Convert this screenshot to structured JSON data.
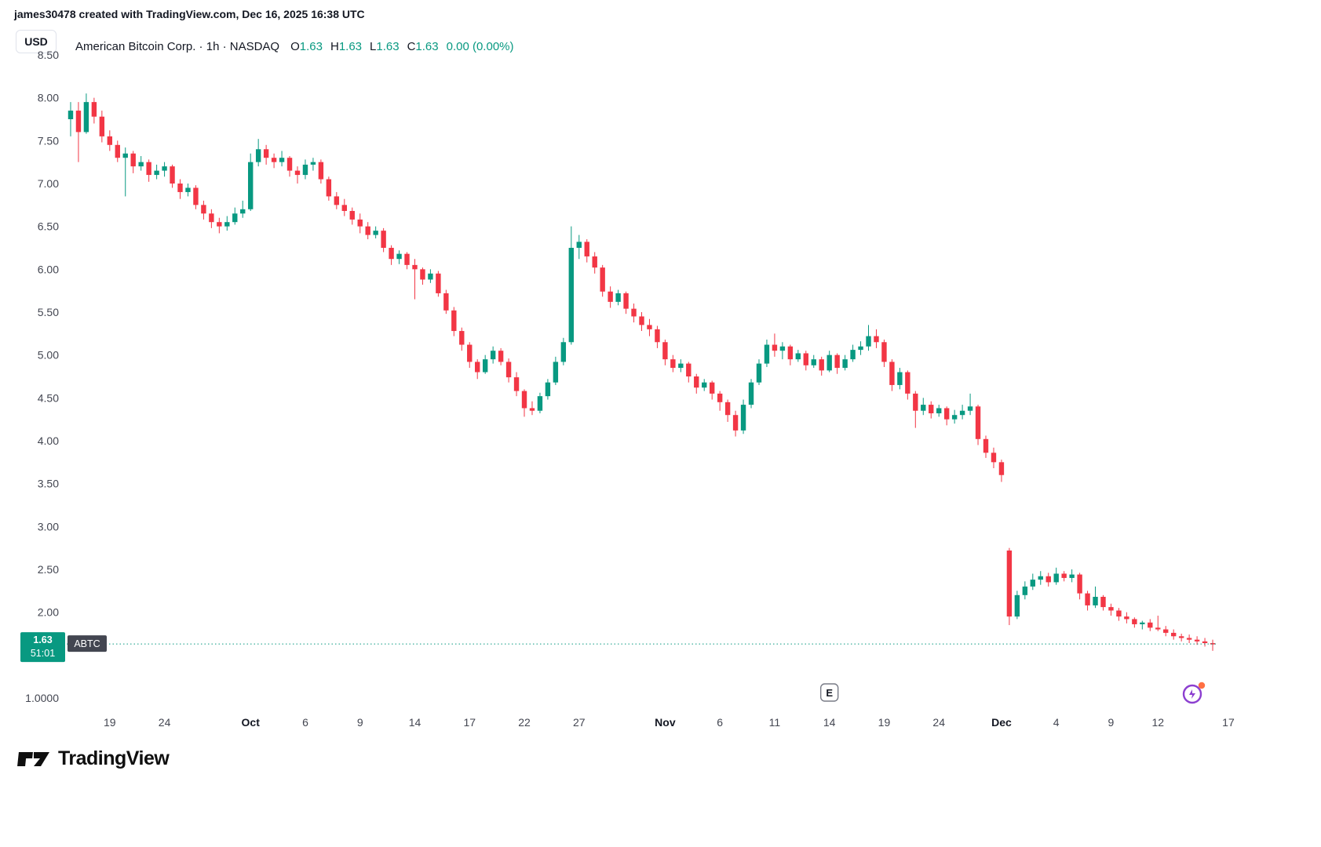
{
  "attribution": "james30478 created with TradingView.com, Dec 16, 2025 16:38 UTC",
  "toolbar": {
    "currency_button": "USD"
  },
  "legend": {
    "title": "American Bitcoin Corp. · 1h · NASDAQ",
    "o_label": "O",
    "o_value": "1.63",
    "h_label": "H",
    "h_value": "1.63",
    "l_label": "L",
    "l_value": "1.63",
    "c_label": "C",
    "c_value": "1.63",
    "change": "0.00 (0.00%)"
  },
  "price_label": {
    "price": "1.63",
    "countdown": "51:01",
    "symbol": "ABTC"
  },
  "footer": {
    "logo_text": "TradingView"
  },
  "colors": {
    "up": "#089981",
    "down": "#f23645",
    "symbol_badge": "#434651",
    "axis_text": "#434651"
  },
  "chart_data": {
    "type": "candlestick",
    "title": "American Bitcoin Corp.",
    "symbol": "ABTC",
    "exchange": "NASDAQ",
    "interval": "1h",
    "currency": "USD",
    "last_price": 1.63,
    "ylim": [
      1.0,
      8.5
    ],
    "grid": false,
    "y_ticks": [
      {
        "label": "8.50",
        "price": 8.5
      },
      {
        "label": "8.00",
        "price": 8.0
      },
      {
        "label": "7.50",
        "price": 7.5
      },
      {
        "label": "7.00",
        "price": 7.0
      },
      {
        "label": "6.50",
        "price": 6.5
      },
      {
        "label": "6.00",
        "price": 6.0
      },
      {
        "label": "5.50",
        "price": 5.5
      },
      {
        "label": "5.00",
        "price": 5.0
      },
      {
        "label": "4.50",
        "price": 4.5
      },
      {
        "label": "4.00",
        "price": 4.0
      },
      {
        "label": "3.50",
        "price": 3.5
      },
      {
        "label": "3.00",
        "price": 3.0
      },
      {
        "label": "2.50",
        "price": 2.5
      },
      {
        "label": "2.00",
        "price": 2.0
      },
      {
        "label": "1.0000",
        "price": 1.0
      }
    ],
    "x_ticks": [
      {
        "label": "19",
        "i": 6
      },
      {
        "label": "24",
        "i": 13
      },
      {
        "label": "Oct",
        "i": 24,
        "bold": true
      },
      {
        "label": "6",
        "i": 31
      },
      {
        "label": "9",
        "i": 38
      },
      {
        "label": "14",
        "i": 45
      },
      {
        "label": "17",
        "i": 52
      },
      {
        "label": "22",
        "i": 59
      },
      {
        "label": "27",
        "i": 66
      },
      {
        "label": "Nov",
        "i": 77,
        "bold": true
      },
      {
        "label": "6",
        "i": 84
      },
      {
        "label": "11",
        "i": 91
      },
      {
        "label": "14",
        "i": 98
      },
      {
        "label": "19",
        "i": 105
      },
      {
        "label": "24",
        "i": 112
      },
      {
        "label": "Dec",
        "i": 120,
        "bold": true
      },
      {
        "label": "4",
        "i": 127
      },
      {
        "label": "9",
        "i": 134
      },
      {
        "label": "12",
        "i": 140
      },
      {
        "label": "17",
        "i": 149
      }
    ],
    "markers": [
      {
        "label": "E",
        "i": 98,
        "type": "earnings"
      }
    ],
    "candles": [
      [
        7.75,
        7.95,
        7.55,
        7.85
      ],
      [
        7.85,
        7.95,
        7.25,
        7.6
      ],
      [
        7.6,
        8.05,
        7.58,
        7.95
      ],
      [
        7.95,
        8.0,
        7.7,
        7.78
      ],
      [
        7.78,
        7.85,
        7.48,
        7.55
      ],
      [
        7.55,
        7.62,
        7.38,
        7.45
      ],
      [
        7.45,
        7.5,
        7.25,
        7.3
      ],
      [
        7.3,
        7.42,
        6.85,
        7.35
      ],
      [
        7.35,
        7.38,
        7.12,
        7.2
      ],
      [
        7.2,
        7.32,
        7.15,
        7.25
      ],
      [
        7.25,
        7.28,
        7.02,
        7.1
      ],
      [
        7.1,
        7.22,
        7.05,
        7.15
      ],
      [
        7.15,
        7.25,
        7.08,
        7.2
      ],
      [
        7.2,
        7.22,
        6.95,
        7.0
      ],
      [
        7.0,
        7.05,
        6.82,
        6.9
      ],
      [
        6.9,
        7.0,
        6.85,
        6.95
      ],
      [
        6.95,
        6.98,
        6.7,
        6.75
      ],
      [
        6.75,
        6.8,
        6.58,
        6.65
      ],
      [
        6.65,
        6.7,
        6.48,
        6.55
      ],
      [
        6.55,
        6.6,
        6.42,
        6.5
      ],
      [
        6.5,
        6.62,
        6.45,
        6.55
      ],
      [
        6.55,
        6.72,
        6.52,
        6.65
      ],
      [
        6.65,
        6.8,
        6.6,
        6.7
      ],
      [
        6.7,
        7.35,
        6.68,
        7.25
      ],
      [
        7.25,
        7.52,
        7.2,
        7.4
      ],
      [
        7.4,
        7.45,
        7.22,
        7.3
      ],
      [
        7.3,
        7.35,
        7.18,
        7.25
      ],
      [
        7.25,
        7.38,
        7.2,
        7.3
      ],
      [
        7.3,
        7.32,
        7.08,
        7.15
      ],
      [
        7.15,
        7.2,
        7.0,
        7.1
      ],
      [
        7.1,
        7.28,
        7.05,
        7.22
      ],
      [
        7.22,
        7.3,
        7.15,
        7.25
      ],
      [
        7.25,
        7.28,
        7.0,
        7.05
      ],
      [
        7.05,
        7.08,
        6.8,
        6.85
      ],
      [
        6.85,
        6.9,
        6.7,
        6.75
      ],
      [
        6.75,
        6.82,
        6.62,
        6.68
      ],
      [
        6.68,
        6.72,
        6.52,
        6.58
      ],
      [
        6.58,
        6.65,
        6.42,
        6.5
      ],
      [
        6.5,
        6.55,
        6.35,
        6.4
      ],
      [
        6.4,
        6.5,
        6.36,
        6.45
      ],
      [
        6.45,
        6.48,
        6.2,
        6.25
      ],
      [
        6.25,
        6.28,
        6.05,
        6.12
      ],
      [
        6.12,
        6.22,
        6.06,
        6.18
      ],
      [
        6.18,
        6.2,
        6.0,
        6.05
      ],
      [
        6.05,
        6.12,
        5.65,
        6.0
      ],
      [
        6.0,
        6.02,
        5.82,
        5.88
      ],
      [
        5.88,
        6.0,
        5.84,
        5.95
      ],
      [
        5.95,
        5.98,
        5.68,
        5.72
      ],
      [
        5.72,
        5.76,
        5.48,
        5.52
      ],
      [
        5.52,
        5.56,
        5.22,
        5.28
      ],
      [
        5.28,
        5.32,
        5.05,
        5.12
      ],
      [
        5.12,
        5.15,
        4.85,
        4.92
      ],
      [
        4.92,
        4.95,
        4.72,
        4.8
      ],
      [
        4.8,
        5.0,
        4.78,
        4.95
      ],
      [
        4.95,
        5.1,
        4.9,
        5.05
      ],
      [
        5.05,
        5.08,
        4.88,
        4.92
      ],
      [
        4.92,
        4.96,
        4.68,
        4.74
      ],
      [
        4.74,
        4.8,
        4.52,
        4.58
      ],
      [
        4.58,
        4.6,
        4.28,
        4.38
      ],
      [
        4.38,
        4.46,
        4.3,
        4.35
      ],
      [
        4.35,
        4.56,
        4.32,
        4.52
      ],
      [
        4.52,
        4.72,
        4.48,
        4.68
      ],
      [
        4.68,
        4.98,
        4.65,
        4.92
      ],
      [
        4.92,
        5.2,
        4.88,
        5.15
      ],
      [
        5.15,
        6.5,
        5.12,
        6.25
      ],
      [
        6.25,
        6.4,
        6.12,
        6.32
      ],
      [
        6.32,
        6.35,
        6.08,
        6.15
      ],
      [
        6.15,
        6.2,
        5.95,
        6.02
      ],
      [
        6.02,
        6.05,
        5.68,
        5.74
      ],
      [
        5.74,
        5.8,
        5.55,
        5.62
      ],
      [
        5.62,
        5.76,
        5.58,
        5.72
      ],
      [
        5.72,
        5.74,
        5.48,
        5.54
      ],
      [
        5.54,
        5.6,
        5.38,
        5.45
      ],
      [
        5.45,
        5.5,
        5.28,
        5.35
      ],
      [
        5.35,
        5.42,
        5.22,
        5.3
      ],
      [
        5.3,
        5.34,
        5.08,
        5.15
      ],
      [
        5.15,
        5.18,
        4.88,
        4.95
      ],
      [
        4.95,
        5.0,
        4.8,
        4.85
      ],
      [
        4.85,
        4.95,
        4.8,
        4.9
      ],
      [
        4.9,
        4.92,
        4.68,
        4.75
      ],
      [
        4.75,
        4.78,
        4.55,
        4.62
      ],
      [
        4.62,
        4.72,
        4.58,
        4.68
      ],
      [
        4.68,
        4.7,
        4.48,
        4.55
      ],
      [
        4.55,
        4.58,
        4.35,
        4.45
      ],
      [
        4.45,
        4.48,
        4.22,
        4.3
      ],
      [
        4.3,
        4.35,
        4.05,
        4.12
      ],
      [
        4.12,
        4.48,
        4.08,
        4.42
      ],
      [
        4.42,
        4.72,
        4.38,
        4.68
      ],
      [
        4.68,
        4.95,
        4.65,
        4.9
      ],
      [
        4.9,
        5.18,
        4.86,
        5.12
      ],
      [
        5.12,
        5.25,
        4.98,
        5.05
      ],
      [
        5.05,
        5.15,
        4.95,
        5.1
      ],
      [
        5.1,
        5.12,
        4.88,
        4.95
      ],
      [
        4.95,
        5.06,
        4.92,
        5.02
      ],
      [
        5.02,
        5.05,
        4.82,
        4.88
      ],
      [
        4.88,
        5.0,
        4.85,
        4.95
      ],
      [
        4.95,
        4.98,
        4.76,
        4.82
      ],
      [
        4.82,
        5.05,
        4.8,
        5.0
      ],
      [
        5.0,
        5.02,
        4.78,
        4.85
      ],
      [
        4.85,
        5.0,
        4.82,
        4.95
      ],
      [
        4.95,
        5.12,
        4.92,
        5.06
      ],
      [
        5.06,
        5.16,
        5.0,
        5.1
      ],
      [
        5.1,
        5.35,
        5.05,
        5.22
      ],
      [
        5.22,
        5.3,
        5.08,
        5.15
      ],
      [
        5.15,
        5.18,
        4.86,
        4.92
      ],
      [
        4.92,
        4.95,
        4.58,
        4.65
      ],
      [
        4.65,
        4.85,
        4.6,
        4.8
      ],
      [
        4.8,
        4.82,
        4.48,
        4.55
      ],
      [
        4.55,
        4.58,
        4.15,
        4.35
      ],
      [
        4.35,
        4.5,
        4.3,
        4.42
      ],
      [
        4.42,
        4.46,
        4.26,
        4.32
      ],
      [
        4.32,
        4.42,
        4.28,
        4.38
      ],
      [
        4.38,
        4.4,
        4.18,
        4.25
      ],
      [
        4.25,
        4.36,
        4.2,
        4.3
      ],
      [
        4.3,
        4.42,
        4.25,
        4.35
      ],
      [
        4.35,
        4.55,
        4.3,
        4.4
      ],
      [
        4.4,
        4.42,
        3.95,
        4.02
      ],
      [
        4.02,
        4.06,
        3.8,
        3.86
      ],
      [
        3.86,
        3.92,
        3.68,
        3.75
      ],
      [
        3.75,
        3.78,
        3.52,
        3.6
      ],
      [
        2.72,
        2.75,
        1.85,
        1.95
      ],
      [
        1.95,
        2.25,
        1.92,
        2.2
      ],
      [
        2.2,
        2.36,
        2.15,
        2.3
      ],
      [
        2.3,
        2.45,
        2.26,
        2.38
      ],
      [
        2.38,
        2.48,
        2.32,
        2.42
      ],
      [
        2.42,
        2.46,
        2.3,
        2.35
      ],
      [
        2.35,
        2.52,
        2.32,
        2.45
      ],
      [
        2.45,
        2.48,
        2.36,
        2.4
      ],
      [
        2.4,
        2.5,
        2.35,
        2.44
      ],
      [
        2.44,
        2.46,
        2.15,
        2.22
      ],
      [
        2.22,
        2.25,
        2.02,
        2.08
      ],
      [
        2.08,
        2.3,
        2.05,
        2.18
      ],
      [
        2.18,
        2.2,
        2.02,
        2.06
      ],
      [
        2.06,
        2.1,
        1.96,
        2.02
      ],
      [
        2.02,
        2.05,
        1.9,
        1.95
      ],
      [
        1.95,
        2.0,
        1.87,
        1.92
      ],
      [
        1.92,
        1.94,
        1.82,
        1.86
      ],
      [
        1.86,
        1.9,
        1.8,
        1.88
      ],
      [
        1.88,
        1.92,
        1.78,
        1.82
      ],
      [
        1.82,
        1.96,
        1.78,
        1.8
      ],
      [
        1.8,
        1.84,
        1.72,
        1.76
      ],
      [
        1.76,
        1.8,
        1.68,
        1.72
      ],
      [
        1.72,
        1.75,
        1.66,
        1.7
      ],
      [
        1.7,
        1.74,
        1.64,
        1.68
      ],
      [
        1.68,
        1.72,
        1.62,
        1.66
      ],
      [
        1.66,
        1.7,
        1.6,
        1.64
      ],
      [
        1.64,
        1.68,
        1.55,
        1.63
      ]
    ]
  }
}
